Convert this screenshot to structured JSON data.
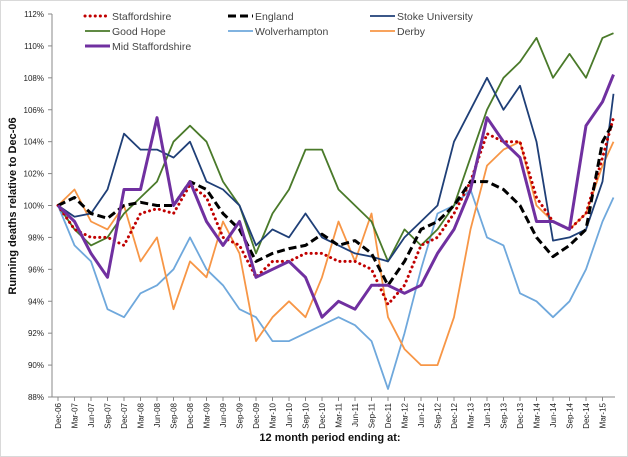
{
  "chart_data": {
    "type": "line",
    "title": "",
    "xlabel": "12 month period ending at:",
    "ylabel": "Running deaths relative to Dec-06",
    "ylim": [
      88,
      112
    ],
    "yticks": [
      "88%",
      "90%",
      "92%",
      "94%",
      "96%",
      "98%",
      "100%",
      "102%",
      "104%",
      "106%",
      "108%",
      "110%",
      "112%"
    ],
    "xtick_labels": [
      "Dec-06",
      "Mar-07",
      "Jun-07",
      "Sep-07",
      "Dec-07",
      "Mar-08",
      "Jun-08",
      "Sep-08",
      "Dec-08",
      "Mar-09",
      "Jun-09",
      "Sep-09",
      "Dec-09",
      "Mar-10",
      "Jun-10",
      "Sep-10",
      "Dec-10",
      "Mar-11",
      "Jun-11",
      "Sep-11",
      "Dec-11",
      "Mar-12",
      "Jun-12",
      "Sep-12",
      "Dec-12",
      "Mar-13",
      "Jun-13",
      "Sep-13",
      "Dec-13",
      "Mar-14",
      "Jun-14",
      "Sep-14",
      "Dec-14",
      "Mar-15"
    ],
    "x": [
      "Dec-06",
      "Mar-07",
      "Jun-07",
      "Sep-07",
      "Dec-07",
      "Mar-08",
      "Jun-08",
      "Sep-08",
      "Dec-08",
      "Mar-09",
      "Jun-09",
      "Sep-09",
      "Dec-09",
      "Mar-10",
      "Jun-10",
      "Sep-10",
      "Dec-10",
      "Mar-11",
      "Jun-11",
      "Sep-11",
      "Dec-11",
      "Mar-12",
      "Jun-12",
      "Sep-12",
      "Dec-12",
      "Mar-13",
      "Jun-13",
      "Sep-13",
      "Dec-13",
      "Mar-14",
      "Jun-14",
      "Sep-14",
      "Dec-14",
      "Mar-15",
      "May-15"
    ],
    "grid": false,
    "legend_position": "top",
    "series": [
      {
        "name": "Staffordshire",
        "color": "#c00000",
        "style": "dotted",
        "values": [
          100,
          98.5,
          98,
          98,
          97.5,
          99.5,
          99.8,
          99.5,
          101.3,
          100.5,
          98,
          97.5,
          95.5,
          96.5,
          96.5,
          97,
          97,
          96.5,
          96.5,
          96,
          93.8,
          95,
          97.5,
          98,
          99.5,
          101.5,
          104.5,
          104,
          104,
          100.5,
          99,
          98.5,
          99.5,
          103,
          105.5
        ]
      },
      {
        "name": "England",
        "color": "#000000",
        "style": "dashed",
        "values": [
          100,
          100.5,
          99.5,
          99.2,
          100,
          100.2,
          100,
          100,
          101.5,
          101,
          99.5,
          98.5,
          96.5,
          97,
          97.3,
          97.5,
          98.2,
          97.5,
          97.8,
          97,
          95,
          96.5,
          98.5,
          99,
          100,
          101.5,
          101.5,
          101,
          100,
          98,
          96.8,
          97.5,
          98.5,
          104,
          105.2
        ]
      },
      {
        "name": "Stoke University",
        "color": "#1f3f77",
        "style": "solid",
        "values": [
          100,
          99.3,
          99.5,
          101,
          104.5,
          103.5,
          103.5,
          103,
          104,
          101.5,
          101,
          100,
          97.5,
          98.5,
          98,
          99.5,
          98,
          97.5,
          97,
          96.8,
          96.5,
          98,
          99,
          100,
          104,
          106,
          108,
          106,
          107.5,
          104,
          97.8,
          98,
          98.5,
          101.5,
          107
        ]
      },
      {
        "name": "Good Hope",
        "color": "#4a7a2a",
        "style": "solid",
        "values": [
          100,
          98.5,
          97.5,
          98,
          99.5,
          100.5,
          101.5,
          104,
          105,
          104,
          101.5,
          100,
          97,
          99.5,
          101,
          103.5,
          103.5,
          101,
          100,
          99,
          96.5,
          98.5,
          97.5,
          98.5,
          100,
          103,
          106,
          108,
          109,
          110.5,
          108,
          109.5,
          108,
          110.5,
          110.8
        ]
      },
      {
        "name": "Wolverhampton",
        "color": "#6fa8dc",
        "style": "solid",
        "values": [
          100,
          97.5,
          96.5,
          93.5,
          93,
          94.5,
          95,
          96,
          98,
          96,
          95,
          93.5,
          93,
          91.5,
          91.5,
          92,
          92.5,
          93,
          92.5,
          91.5,
          88.5,
          92,
          96,
          99.5,
          100,
          101,
          98,
          97.5,
          94.5,
          94,
          93,
          94,
          96,
          99,
          100.5
        ]
      },
      {
        "name": "Derby",
        "color": "#f79646",
        "style": "solid",
        "values": [
          100,
          101,
          99,
          98.5,
          100,
          96.5,
          98,
          93.5,
          96.5,
          95.5,
          99,
          97,
          91.5,
          93,
          94,
          93,
          95.5,
          99,
          96.5,
          99.5,
          93,
          91,
          90,
          90,
          93,
          98.5,
          102.5,
          103.5,
          104,
          100,
          99,
          98.5,
          99.5,
          102.5,
          104
        ]
      },
      {
        "name": "Mid Staffordshire",
        "color": "#7030a0",
        "style": "thick",
        "values": [
          100,
          99,
          97,
          95.5,
          101,
          101,
          105.5,
          100,
          101.5,
          99,
          97.5,
          99,
          95.5,
          96,
          96.5,
          95.5,
          93,
          94,
          93.5,
          95,
          95,
          94.5,
          95,
          97,
          98.5,
          101,
          105.5,
          104,
          103,
          99,
          99,
          98.5,
          105,
          106.5,
          108.2
        ]
      }
    ]
  }
}
